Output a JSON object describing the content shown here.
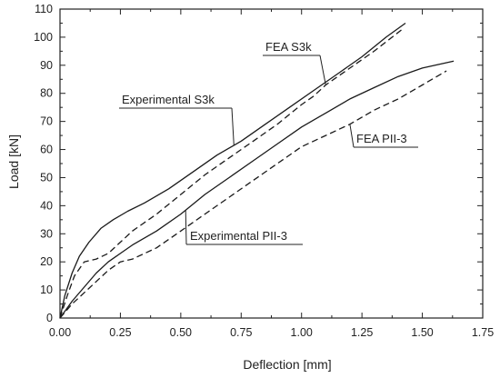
{
  "chart_data": {
    "type": "line",
    "title": "",
    "xlabel": "Deflection [mm]",
    "ylabel": "Load [kN]",
    "xlim": [
      0,
      1.75
    ],
    "ylim": [
      0,
      110
    ],
    "x_ticks": [
      "0.00",
      "0.25",
      "0.50",
      "0.75",
      "1.00",
      "1.25",
      "1.50",
      "1.75"
    ],
    "y_ticks": [
      "0",
      "10",
      "20",
      "30",
      "40",
      "50",
      "60",
      "70",
      "80",
      "90",
      "100",
      "110"
    ],
    "grid": false,
    "legend": "none",
    "colors": {
      "line": "#1a1a1a",
      "axis": "#222222"
    },
    "series": [
      {
        "name": "Experimental S3k",
        "style": "solid",
        "x": [
          0,
          0.02,
          0.05,
          0.08,
          0.12,
          0.17,
          0.22,
          0.28,
          0.35,
          0.45,
          0.55,
          0.65,
          0.75,
          0.85,
          0.95,
          1.05,
          1.15,
          1.25,
          1.35,
          1.43
        ],
        "y": [
          0,
          8,
          16,
          22,
          27,
          32,
          35,
          38,
          41,
          46,
          52,
          58,
          63,
          69,
          75,
          81,
          87,
          93,
          100,
          105
        ]
      },
      {
        "name": "FEA S3k",
        "style": "dashed",
        "x": [
          0,
          0.03,
          0.06,
          0.1,
          0.15,
          0.2,
          0.3,
          0.4,
          0.5,
          0.6,
          0.7,
          0.8,
          0.9,
          1.0,
          1.05,
          1.1,
          1.2,
          1.3,
          1.42
        ],
        "y": [
          0,
          8,
          15,
          20,
          21,
          23,
          31,
          37,
          44,
          51,
          57,
          63,
          69,
          76,
          79,
          83,
          89,
          95,
          103
        ]
      },
      {
        "name": "Experimental PII-3",
        "style": "solid",
        "x": [
          0,
          0.05,
          0.1,
          0.15,
          0.2,
          0.25,
          0.3,
          0.4,
          0.5,
          0.6,
          0.7,
          0.8,
          0.9,
          1.0,
          1.1,
          1.2,
          1.3,
          1.4,
          1.5,
          1.63
        ],
        "y": [
          0,
          6,
          11,
          16,
          20,
          23,
          26,
          31,
          37,
          44,
          50,
          56,
          62,
          68,
          73,
          78,
          82,
          86,
          89,
          91.5
        ]
      },
      {
        "name": "FEA PII-3",
        "style": "dashed",
        "x": [
          0,
          0.05,
          0.1,
          0.15,
          0.2,
          0.25,
          0.3,
          0.4,
          0.5,
          0.6,
          0.7,
          0.8,
          0.9,
          1.0,
          1.1,
          1.2,
          1.3,
          1.4,
          1.5,
          1.6
        ],
        "y": [
          0,
          5,
          9,
          13,
          17,
          20,
          21,
          25,
          31,
          37,
          43,
          49,
          55,
          61,
          65,
          69,
          74,
          78,
          83,
          88
        ]
      }
    ],
    "annotations": [
      {
        "text": "FEA S3k",
        "series": "FEA S3k",
        "at_x": 1.1
      },
      {
        "text": "Experimental S3k",
        "series": "Experimental S3k",
        "at_x": 0.72
      },
      {
        "text": "FEA PII-3",
        "series": "FEA PII-3",
        "at_x": 1.2
      },
      {
        "text": "Experimental PII-3",
        "series": "Experimental PII-3",
        "at_x": 0.52
      }
    ]
  }
}
